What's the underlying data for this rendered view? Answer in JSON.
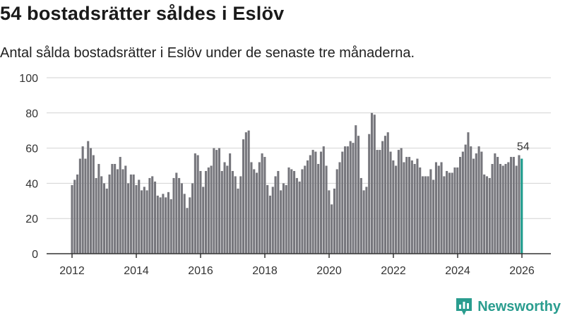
{
  "title": "54 bostadsrätter såldes i Eslöv",
  "subtitle": "Antal sålda bostadsrätter i Eslöv under de senaste tre månaderna.",
  "brand": {
    "name": "Newsworthy",
    "icon": "bar-chart-logo-icon",
    "color": "#2a9d8f"
  },
  "colors": {
    "bar": "#76767c",
    "highlight": "#1d9b8c",
    "grid": "#d2d2d2"
  },
  "chart_data": {
    "type": "bar",
    "title": "54 bostadsrätter såldes i Eslöv",
    "xlabel": "",
    "ylabel": "",
    "ylim": [
      0,
      100
    ],
    "yticks": [
      0,
      20,
      40,
      60,
      80,
      100
    ],
    "xticks": [
      2012,
      2014,
      2016,
      2018,
      2020,
      2022,
      2024,
      2026
    ],
    "x_start": 2012.0,
    "x_step": 0.0833,
    "grid": true,
    "highlight_last": true,
    "last_label": "54",
    "values": [
      39,
      42,
      45,
      54,
      61,
      54,
      64,
      60,
      56,
      43,
      51,
      44,
      40,
      37,
      45,
      51,
      51,
      48,
      55,
      48,
      50,
      40,
      45,
      45,
      39,
      42,
      36,
      38,
      36,
      43,
      44,
      41,
      33,
      32,
      34,
      32,
      35,
      31,
      43,
      46,
      43,
      40,
      34,
      26,
      32,
      40,
      57,
      56,
      47,
      38,
      47,
      49,
      50,
      60,
      59,
      60,
      47,
      52,
      50,
      57,
      47,
      44,
      37,
      44,
      65,
      69,
      70,
      52,
      48,
      46,
      52,
      57,
      55,
      39,
      33,
      38,
      44,
      47,
      36,
      40,
      39,
      49,
      48,
      47,
      43,
      41,
      48,
      50,
      53,
      56,
      59,
      58,
      51,
      58,
      61,
      50,
      36,
      28,
      37,
      48,
      52,
      58,
      61,
      61,
      64,
      63,
      73,
      67,
      43,
      36,
      38,
      68,
      80,
      79,
      59,
      59,
      64,
      67,
      69,
      58,
      53,
      50,
      59,
      60,
      52,
      55,
      55,
      53,
      51,
      54,
      49,
      44,
      44,
      44,
      48,
      42,
      52,
      50,
      52,
      44,
      47,
      46,
      46,
      49,
      49,
      55,
      58,
      62,
      69,
      61,
      54,
      57,
      61,
      58,
      45,
      44,
      43,
      51,
      57,
      55,
      51,
      50,
      51,
      52,
      55,
      55,
      50,
      56,
      54
    ]
  }
}
